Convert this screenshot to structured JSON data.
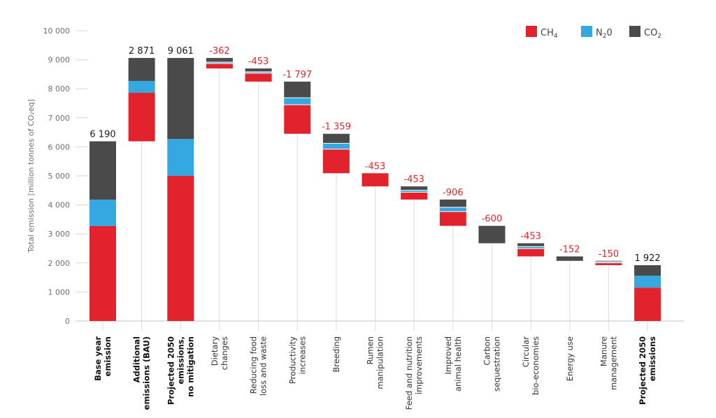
{
  "chart_data": {
    "type": "bar",
    "subtype": "stacked-waterfall",
    "title": "",
    "ylabel": "Total emission [million tonnes of CO₂eq]",
    "xlabel": "",
    "ylim": [
      0,
      10000
    ],
    "yticks": [
      0,
      1000,
      2000,
      3000,
      4000,
      5000,
      6000,
      7000,
      8000,
      9000,
      10000
    ],
    "ytick_labels": [
      "0",
      "1 000",
      "2 000",
      "3 000",
      "4 000",
      "5 000",
      "6 000",
      "7 000",
      "8 000",
      "9 000",
      "10 000"
    ],
    "grid": false,
    "legend": {
      "position": "top-right",
      "entries": [
        {
          "key": "CH4",
          "label": "CH",
          "sub": "4",
          "color": "#e3232b"
        },
        {
          "key": "N2O",
          "label": "N",
          "sub": "2",
          "tail": "0",
          "color": "#35a8e0"
        },
        {
          "key": "CO2",
          "label": "CO",
          "sub": "2",
          "color": "#4a4a4a"
        }
      ]
    },
    "label_colors": {
      "total": "#1a1a1a",
      "reduction": "#e3232b"
    },
    "categories": [
      {
        "lines": [
          "Base year",
          "emission"
        ],
        "bold": true,
        "kind": "total",
        "label": "6 190",
        "base": 0,
        "CH4": 3270,
        "N2O": 910,
        "CO2": 2010
      },
      {
        "lines": [
          "Additional",
          "emissions (BAU)"
        ],
        "bold": true,
        "kind": "increase",
        "label": "2 871",
        "base": 6190,
        "CH4": 1670,
        "N2O": 410,
        "CO2": 791
      },
      {
        "lines": [
          "Projected 2050",
          "emissions,",
          "no mitigation"
        ],
        "bold": true,
        "kind": "total",
        "label": "9 061",
        "base": 0,
        "CH4": 5000,
        "N2O": 1270,
        "CO2": 2791
      },
      {
        "lines": [
          "Dietary",
          "changes"
        ],
        "bold": false,
        "kind": "reduction",
        "label": "-362",
        "top": 9061,
        "CH4": 170,
        "N2O": 50,
        "CO2": 142
      },
      {
        "lines": [
          "Reducing food",
          "loss and waste"
        ],
        "bold": false,
        "kind": "reduction",
        "label": "-453",
        "top": 8699,
        "CH4": 290,
        "N2O": 50,
        "CO2": 113
      },
      {
        "lines": [
          "Productivity",
          "increases"
        ],
        "bold": false,
        "kind": "reduction",
        "label": "-1 797",
        "top": 8246,
        "CH4": 1000,
        "N2O": 240,
        "CO2": 557
      },
      {
        "lines": [
          "Breeding"
        ],
        "bold": false,
        "kind": "reduction",
        "label": "-1 359",
        "top": 6449,
        "CH4": 830,
        "N2O": 200,
        "CO2": 329
      },
      {
        "lines": [
          "Rumen",
          "manipulation"
        ],
        "bold": false,
        "kind": "reduction",
        "label": "-453",
        "top": 5090,
        "CH4": 453,
        "N2O": 0,
        "CO2": 0
      },
      {
        "lines": [
          "Feed and nutrition",
          "improvements"
        ],
        "bold": false,
        "kind": "reduction",
        "label": "-453",
        "top": 4637,
        "CH4": 250,
        "N2O": 70,
        "CO2": 133
      },
      {
        "lines": [
          "Improved",
          "animal health"
        ],
        "bold": false,
        "kind": "reduction",
        "label": "-906",
        "top": 4184,
        "CH4": 490,
        "N2O": 150,
        "CO2": 266
      },
      {
        "lines": [
          "Carbon",
          "sequestration"
        ],
        "bold": false,
        "kind": "reduction",
        "label": "-600",
        "top": 3278,
        "CH4": 0,
        "N2O": 0,
        "CO2": 600
      },
      {
        "lines": [
          "Circular",
          "bio-economies"
        ],
        "bold": false,
        "kind": "reduction",
        "label": "-453",
        "top": 2678,
        "CH4": 270,
        "N2O": 70,
        "CO2": 113
      },
      {
        "lines": [
          "Energy use"
        ],
        "bold": false,
        "kind": "reduction",
        "label": "-152",
        "top": 2225,
        "CH4": 0,
        "N2O": 0,
        "CO2": 152
      },
      {
        "lines": [
          "Manure",
          "management"
        ],
        "bold": false,
        "kind": "reduction",
        "label": "-150",
        "top": 2073,
        "CH4": 80,
        "N2O": 40,
        "CO2": 30
      },
      {
        "lines": [
          "Projected 2050",
          "emissions"
        ],
        "bold": true,
        "kind": "total",
        "label": "1 922",
        "base": 0,
        "CH4": 1150,
        "N2O": 410,
        "CO2": 362
      }
    ]
  }
}
